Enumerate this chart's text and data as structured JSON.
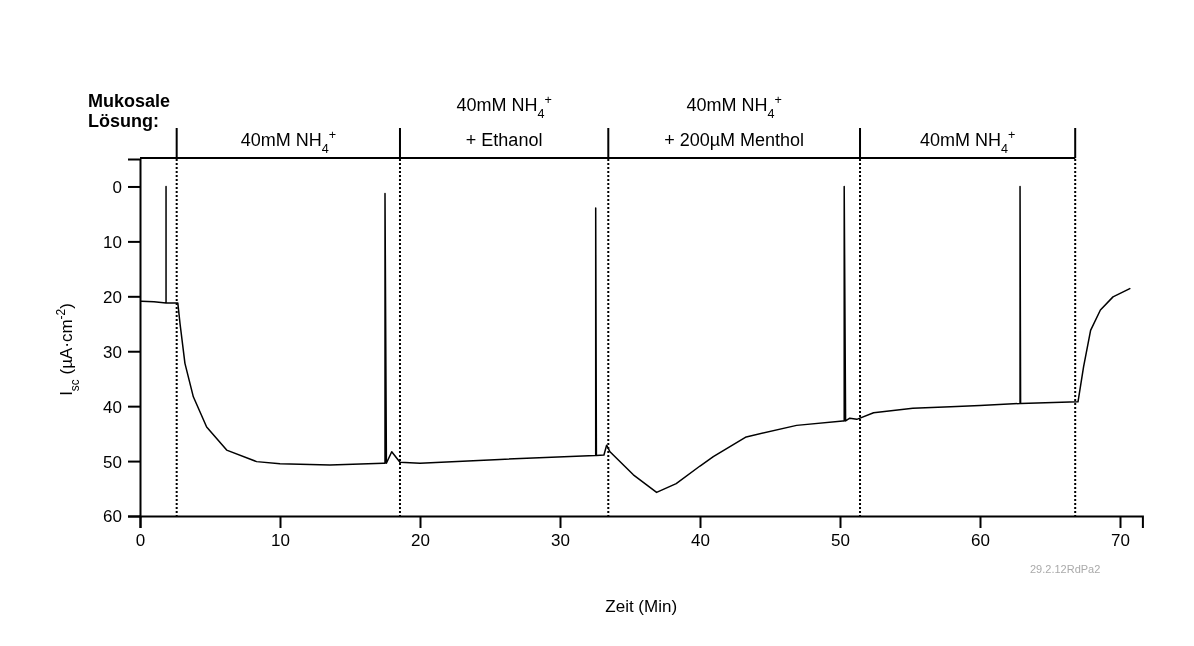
{
  "chart_data": {
    "type": "line",
    "xlabel": "Zeit (Min)",
    "ylabel": "I$_{sc}$ (µA·cm$^{-2}$)",
    "xlim": [
      0,
      71.6
    ],
    "ylim": [
      60,
      -5
    ],
    "xticks": [
      0,
      10,
      20,
      30,
      40,
      50,
      60,
      70
    ],
    "yticks": [
      0,
      10,
      20,
      30,
      40,
      50,
      60
    ],
    "grid": false,
    "marker": "none",
    "line_style": "solid",
    "series": [
      {
        "color": "#000000",
        "x": [
          0.1,
          1.0,
          1.86,
          1.86,
          1.86,
          2.7,
          2.86,
          3.21,
          3.81,
          4.76,
          6.19,
          8.33,
          10,
          13.57,
          17.38,
          17.5,
          17.5,
          17.6,
          17.98,
          18.57,
          20,
          25.7,
          32.5,
          32.55,
          32.55,
          32.6,
          33.14,
          33.33,
          33.57,
          35.24,
          36.9,
          38.3,
          40,
          40.95,
          43.3,
          46.9,
          50.2,
          50.3,
          50.3,
          50.4,
          50.7,
          51.2,
          52.4,
          55.2,
          57.9,
          60,
          62.86,
          62.86,
          62.9,
          67.0,
          67.4,
          67.9,
          68.6,
          69.5,
          70.7
        ],
        "values": [
          20.9,
          21.0,
          21.2,
          0,
          21.2,
          21.2,
          25,
          32.2,
          38.3,
          43.8,
          48,
          50.1,
          50.5,
          50.7,
          50.4,
          50.4,
          1.3,
          50.4,
          48.3,
          50.2,
          50.4,
          49.7,
          49.0,
          49.0,
          3.9,
          49.0,
          48.9,
          47.1,
          48.3,
          52.5,
          55.7,
          54.1,
          50.9,
          49.2,
          45.6,
          43.5,
          42.7,
          42.7,
          0,
          42.7,
          42.2,
          42.4,
          41.2,
          40.4,
          40.1,
          39.9,
          39.5,
          0,
          39.5,
          39.2,
          32.8,
          26.2,
          22.5,
          20.1,
          18.6
        ]
      }
    ],
    "ref_lines": [
      {
        "axis": "x",
        "value": 2.62,
        "line_style": "dotted"
      },
      {
        "axis": "x",
        "value": 18.57,
        "line_style": "dotted"
      },
      {
        "axis": "x",
        "value": 33.45,
        "line_style": "dotted"
      },
      {
        "axis": "x",
        "value": 51.43,
        "line_style": "dotted"
      },
      {
        "axis": "x",
        "value": 66.8,
        "line_style": "dotted"
      }
    ],
    "annotations": [
      "Mukosale\nLösung:",
      "29.2.12RdPa2",
      "40mM NH$_{4}$$^{+}$",
      "40mM NH$_{4}$$^{+}$\n+ Ethanol",
      "40mM NH$_{4}$$^{+}$\n+ 200µM Menthol",
      "40mM NH$_{4}$$^{+}$"
    ]
  }
}
